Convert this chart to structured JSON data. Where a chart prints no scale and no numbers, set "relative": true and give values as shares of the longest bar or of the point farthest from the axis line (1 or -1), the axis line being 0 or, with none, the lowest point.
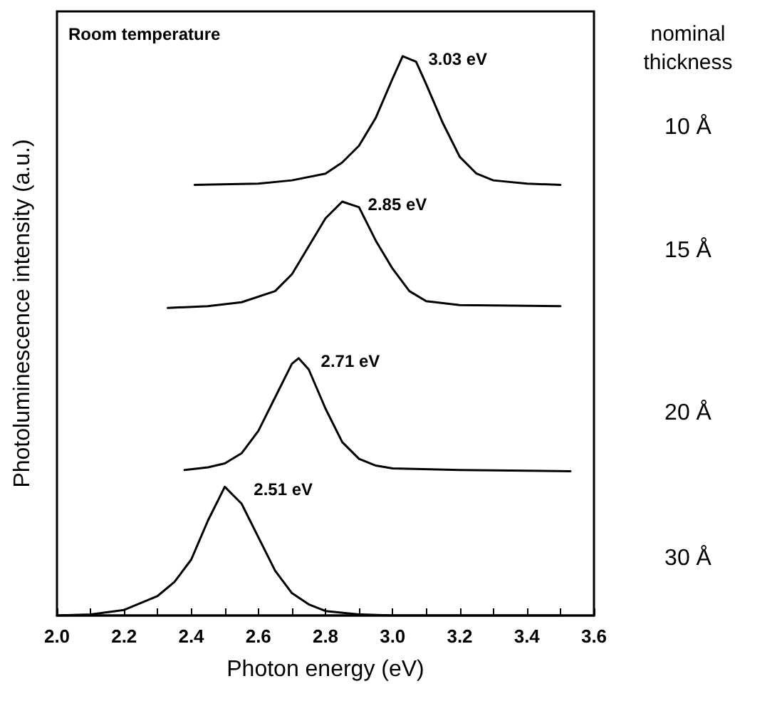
{
  "chart_data": {
    "type": "line",
    "relative": true,
    "xlabel": "Photon energy (eV)",
    "ylabel": "Photoluminescence intensity (a.u.)",
    "legend_title": "nominal thickness",
    "xlim": [
      2.0,
      3.6
    ],
    "xticks": [
      {
        "value": 2.0,
        "label": "2.0"
      },
      {
        "value": 2.1,
        "label": null
      },
      {
        "value": 2.2,
        "label": "2.2"
      },
      {
        "value": 2.3,
        "label": null
      },
      {
        "value": 2.4,
        "label": "2.4"
      },
      {
        "value": 2.5,
        "label": null
      },
      {
        "value": 2.6,
        "label": "2.6"
      },
      {
        "value": 2.7,
        "label": null
      },
      {
        "value": 2.8,
        "label": "2.8"
      },
      {
        "value": 2.9,
        "label": null
      },
      {
        "value": 3.0,
        "label": "3.0"
      },
      {
        "value": 3.1,
        "label": null
      },
      {
        "value": 3.2,
        "label": "3.2"
      },
      {
        "value": 3.3,
        "label": null
      },
      {
        "value": 3.4,
        "label": "3.4"
      },
      {
        "value": 3.5,
        "label": null
      },
      {
        "value": 3.6,
        "label": "3.6"
      }
    ],
    "legend": "right",
    "grid": false,
    "marker": "none",
    "line_style": "solid",
    "series": [
      {
        "name": "10 Å",
        "color": "#000000",
        "x": [
          2.41,
          2.6,
          2.7,
          2.8,
          2.85,
          2.9,
          2.95,
          3.0,
          3.03,
          3.07,
          3.1,
          3.15,
          3.2,
          3.25,
          3.3,
          3.4,
          3.5
        ],
        "values": [
          0.77,
          0.772,
          0.778,
          0.79,
          0.81,
          0.84,
          0.89,
          0.96,
          1.0,
          0.99,
          0.95,
          0.88,
          0.82,
          0.79,
          0.778,
          0.772,
          0.77
        ]
      },
      {
        "name": "15 Å",
        "color": "#000000",
        "x": [
          2.33,
          2.45,
          2.55,
          2.65,
          2.7,
          2.75,
          2.8,
          2.85,
          2.9,
          2.95,
          3.0,
          3.05,
          3.1,
          3.2,
          3.5
        ],
        "values": [
          0.55,
          0.553,
          0.56,
          0.58,
          0.61,
          0.66,
          0.71,
          0.74,
          0.73,
          0.67,
          0.62,
          0.58,
          0.562,
          0.555,
          0.553
        ]
      },
      {
        "name": "20 Å",
        "color": "#000000",
        "x": [
          2.38,
          2.45,
          2.5,
          2.55,
          2.6,
          2.65,
          2.7,
          2.72,
          2.75,
          2.8,
          2.85,
          2.9,
          2.95,
          3.0,
          3.2,
          3.53
        ],
        "values": [
          0.26,
          0.265,
          0.272,
          0.29,
          0.33,
          0.39,
          0.45,
          0.46,
          0.44,
          0.37,
          0.31,
          0.28,
          0.268,
          0.263,
          0.26,
          0.258
        ]
      },
      {
        "name": "30 Å",
        "color": "#000000",
        "x": [
          2.0,
          2.1,
          2.2,
          2.3,
          2.35,
          2.4,
          2.45,
          2.5,
          2.55,
          2.6,
          2.65,
          2.7,
          2.75,
          2.8,
          2.9,
          3.0,
          3.5
        ],
        "values": [
          0,
          0.002,
          0.01,
          0.035,
          0.06,
          0.1,
          0.17,
          0.23,
          0.2,
          0.14,
          0.08,
          0.04,
          0.02,
          0.008,
          0.002,
          0,
          0
        ]
      }
    ],
    "annotations": [
      "Room temperature",
      {
        "text": "3.03 eV",
        "x": 3.03,
        "y": 1.0
      },
      {
        "text": "2.85 eV",
        "x": 2.85,
        "y": 0.74
      },
      {
        "text": "2.71 eV",
        "x": 2.71,
        "y": 0.46
      },
      {
        "text": "2.51 eV",
        "x": 2.51,
        "y": 0.23
      }
    ]
  }
}
